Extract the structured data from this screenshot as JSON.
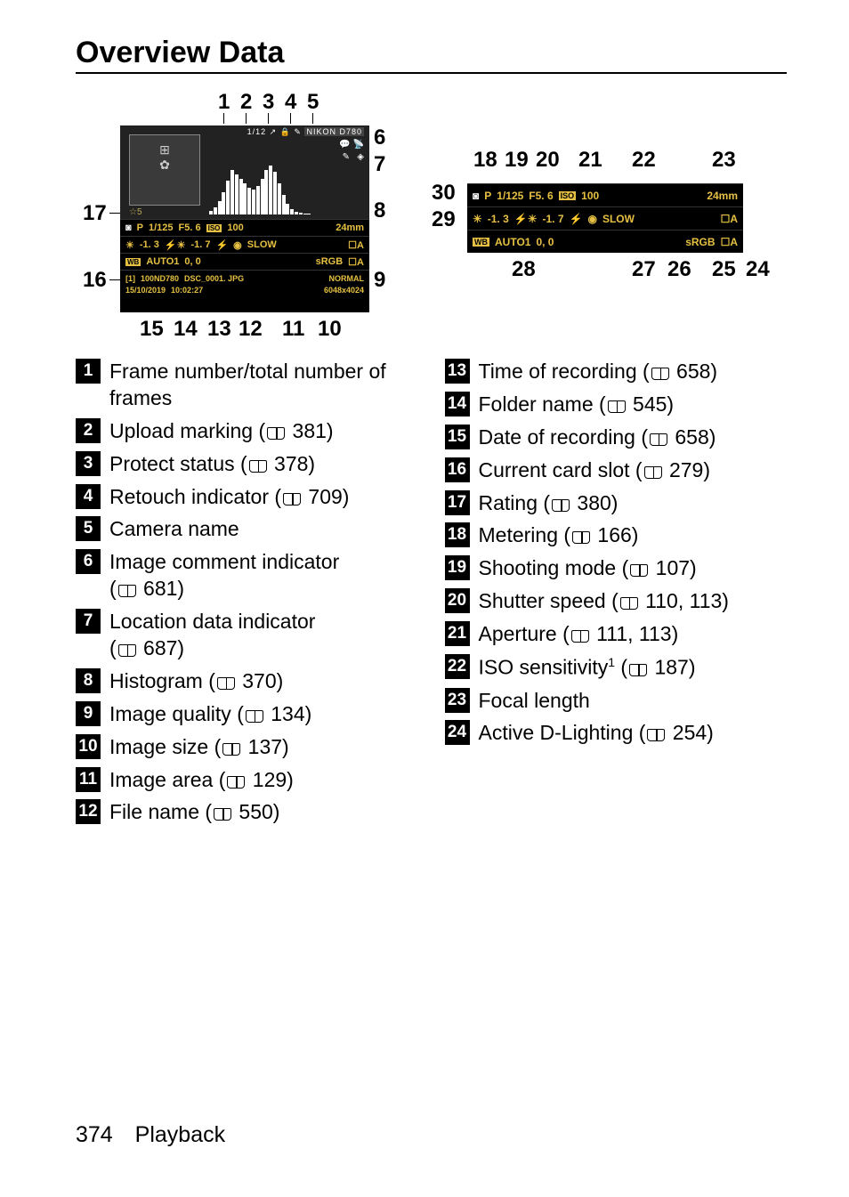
{
  "title": "Overview Data",
  "footer": {
    "page": "374",
    "section": "Playback"
  },
  "screen1": {
    "frame": "1/12",
    "camera": "NIKON D780",
    "rating": "☆5",
    "row1": {
      "mode": "P",
      "shutter": "1/125",
      "aperture": "F5. 6",
      "iso_label": "ISO",
      "iso": "100",
      "focal": "24mm"
    },
    "row2": {
      "ev": "-1. 3",
      "flash_ev": "-1. 7",
      "flash": "⚡",
      "redeye": "◉",
      "sync": "SLOW",
      "adl": "A"
    },
    "row3": {
      "wb": "WB",
      "wb_val": "AUTO1",
      "wb_adj": "0,  0",
      "space": "sRGB",
      "pc": "A"
    },
    "row4": {
      "slot": "[1]",
      "folder": "100ND780",
      "file": "DSC_0001. JPG",
      "quality": "NORMAL"
    },
    "row5": {
      "date": "15/10/2019",
      "time": "10:02:27",
      "size": "6048x4024"
    }
  },
  "screen2": {
    "row1": {
      "mode": "P",
      "shutter": "1/125",
      "aperture": "F5. 6",
      "iso_label": "ISO",
      "iso": "100",
      "focal": "24mm"
    },
    "row2": {
      "ev": "-1. 3",
      "flash_ev": "-1. 7",
      "flash": "⚡",
      "redeye": "◉",
      "sync": "SLOW",
      "adl": "A"
    },
    "row3": {
      "wb": "WB",
      "wb_val": "AUTO1",
      "wb_adj": "0,  0",
      "space": "sRGB",
      "pc": "A"
    }
  },
  "legend_left": [
    {
      "n": "1",
      "text": "Frame number/total number of frames"
    },
    {
      "n": "2",
      "text": "Upload marking",
      "ref": "381"
    },
    {
      "n": "3",
      "text": "Protect status",
      "ref": "378"
    },
    {
      "n": "4",
      "text": "Retouch indicator",
      "ref": "709"
    },
    {
      "n": "5",
      "text": "Camera name"
    },
    {
      "n": "6",
      "text": "Image comment indicator",
      "ref": "681",
      "refBelow": true
    },
    {
      "n": "7",
      "text": "Location data indicator",
      "ref": "687",
      "refBelow": true
    },
    {
      "n": "8",
      "text": "Histogram",
      "ref": "370"
    },
    {
      "n": "9",
      "text": "Image quality",
      "ref": "134"
    },
    {
      "n": "10",
      "text": "Image size",
      "ref": "137"
    },
    {
      "n": "11",
      "text": "Image area",
      "ref": "129"
    },
    {
      "n": "12",
      "text": "File name",
      "ref": "550"
    }
  ],
  "legend_right": [
    {
      "n": "13",
      "text": "Time of recording",
      "ref": "658"
    },
    {
      "n": "14",
      "text": "Folder name",
      "ref": "545"
    },
    {
      "n": "15",
      "text": "Date of recording",
      "ref": "658"
    },
    {
      "n": "16",
      "text": "Current card slot",
      "ref": "279"
    },
    {
      "n": "17",
      "text": "Rating",
      "ref": "380"
    },
    {
      "n": "18",
      "text": "Metering",
      "ref": "166"
    },
    {
      "n": "19",
      "text": "Shooting mode",
      "ref": "107"
    },
    {
      "n": "20",
      "text": "Shutter speed",
      "ref": "110, 113"
    },
    {
      "n": "21",
      "text": "Aperture",
      "ref": "111, 113"
    },
    {
      "n": "22",
      "text": "ISO sensitivity",
      "sup": "1",
      "ref": "187"
    },
    {
      "n": "23",
      "text": "Focal length"
    },
    {
      "n": "24",
      "text": "Active D-Lighting",
      "ref": "254"
    }
  ],
  "callouts_left_top": [
    "1",
    "2",
    "3",
    "4",
    "5"
  ],
  "callouts_left_right": [
    "6",
    "7",
    "8",
    "9"
  ],
  "callouts_left_left": [
    "17",
    "16"
  ],
  "callouts_left_bot": [
    "15",
    "14",
    "13",
    "12",
    "11",
    "10"
  ],
  "callouts_right_top": [
    "18",
    "19",
    "20",
    "21",
    "22",
    "23"
  ],
  "callouts_right_left": [
    "30",
    "29"
  ],
  "callouts_right_bot": [
    "28",
    "27",
    "26",
    "25",
    "24"
  ],
  "histogram_bars": [
    4,
    8,
    15,
    25,
    38,
    50,
    45,
    40,
    35,
    30,
    28,
    32,
    40,
    50,
    55,
    48,
    35,
    22,
    12,
    6,
    3,
    2,
    1,
    1,
    0,
    0,
    0,
    0,
    0,
    0,
    0,
    0,
    0,
    0,
    0
  ]
}
